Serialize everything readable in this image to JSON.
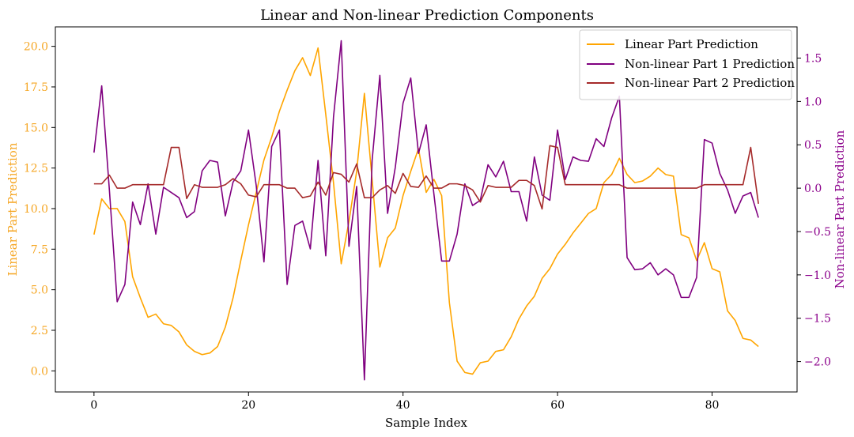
{
  "chart_data": {
    "type": "line",
    "title": "Linear and Non-linear Prediction Components",
    "xlabel": "Sample Index",
    "ylabel_left": "Linear Part Prediction",
    "ylabel_right": "Non-linear Part Prediction",
    "xlim": [
      -5,
      91
    ],
    "ylim_left": [
      -1.3,
      21.2
    ],
    "ylim_right": [
      -2.35,
      1.86
    ],
    "x_ticks": [
      0,
      20,
      40,
      60,
      80
    ],
    "x_tick_labels": [
      "0",
      "20",
      "40",
      "60",
      "80"
    ],
    "y_left_ticks": [
      0.0,
      2.5,
      5.0,
      7.5,
      10.0,
      12.5,
      15.0,
      17.5,
      20.0
    ],
    "y_left_tick_labels": [
      "0.0",
      "2.5",
      "5.0",
      "7.5",
      "10.0",
      "12.5",
      "15.0",
      "17.5",
      "20.0"
    ],
    "y_right_ticks": [
      -2.0,
      -1.5,
      -1.0,
      -0.5,
      0.0,
      0.5,
      1.0,
      1.5
    ],
    "y_right_tick_labels": [
      "−2.0",
      "−1.5",
      "−1.0",
      "−0.5",
      "0.0",
      "0.5",
      "1.0",
      "1.5"
    ],
    "legend_position": "top-right",
    "colors": {
      "left_axis": "#f5a623",
      "right_axis": "#8b008b"
    },
    "series": [
      {
        "name": "Linear Part Prediction",
        "axis": "left",
        "color": "#ffa500",
        "values": [
          8.4,
          10.6,
          10.0,
          10.0,
          9.2,
          5.8,
          4.5,
          3.3,
          3.5,
          2.9,
          2.8,
          2.4,
          1.6,
          1.2,
          1.0,
          1.1,
          1.5,
          2.7,
          4.5,
          6.8,
          9.0,
          11.0,
          13.0,
          14.4,
          16.0,
          17.3,
          18.5,
          19.3,
          18.2,
          19.9,
          15.8,
          11.6,
          6.6,
          9.2,
          12.3,
          17.1,
          11.8,
          6.4,
          8.2,
          8.8,
          10.8,
          12.3,
          13.7,
          11.0,
          11.8,
          10.8,
          4.2,
          0.6,
          -0.1,
          -0.2,
          0.5,
          0.6,
          1.2,
          1.3,
          2.1,
          3.2,
          4.0,
          4.6,
          5.7,
          6.3,
          7.2,
          7.8,
          8.5,
          9.1,
          9.7,
          10.0,
          11.6,
          12.1,
          13.1,
          12.1,
          11.6,
          11.7,
          12.0,
          12.5,
          12.1,
          12.0,
          8.4,
          8.2,
          6.8,
          7.9,
          6.3,
          6.1,
          3.7,
          3.1,
          2.0,
          1.9,
          1.5
        ]
      },
      {
        "name": "Non-linear Part 1 Prediction",
        "axis": "right",
        "color": "#800080",
        "values": [
          0.41,
          1.18,
          -0.03,
          -1.31,
          -1.11,
          -0.16,
          -0.42,
          0.05,
          -0.53,
          0.01,
          -0.05,
          -0.11,
          -0.34,
          -0.27,
          0.2,
          0.32,
          0.3,
          -0.32,
          0.07,
          0.2,
          0.67,
          0.03,
          -0.85,
          0.48,
          0.67,
          -1.11,
          -0.43,
          -0.38,
          -0.7,
          0.32,
          -0.78,
          0.82,
          1.7,
          -0.67,
          0.02,
          -2.21,
          0.32,
          1.3,
          -0.29,
          0.24,
          0.98,
          1.27,
          0.4,
          0.73,
          -0.07,
          -0.84,
          -0.84,
          -0.53,
          0.05,
          -0.2,
          -0.14,
          0.27,
          0.13,
          0.31,
          -0.04,
          -0.04,
          -0.38,
          0.36,
          -0.08,
          -0.14,
          0.67,
          0.1,
          0.36,
          0.32,
          0.31,
          0.57,
          0.48,
          0.81,
          1.06,
          -0.8,
          -0.94,
          -0.93,
          -0.86,
          -1.0,
          -0.93,
          -1.0,
          -1.26,
          -1.26,
          -1.03,
          0.56,
          0.52,
          0.17,
          -0.02,
          -0.29,
          -0.09,
          -0.05,
          -0.34
        ]
      },
      {
        "name": "Non-linear Part 2 Prediction",
        "axis": "right",
        "color": "#a52a2a",
        "values": [
          0.05,
          0.05,
          0.15,
          0.0,
          0.0,
          0.04,
          0.04,
          0.04,
          0.04,
          0.04,
          0.47,
          0.47,
          -0.12,
          0.04,
          0.01,
          0.01,
          0.01,
          0.04,
          0.11,
          0.05,
          -0.08,
          -0.1,
          0.04,
          0.04,
          0.04,
          0.0,
          0.0,
          -0.11,
          -0.09,
          0.07,
          -0.08,
          0.18,
          0.16,
          0.07,
          0.28,
          -0.11,
          -0.11,
          -0.02,
          0.03,
          -0.06,
          0.17,
          0.02,
          0.01,
          0.14,
          0.0,
          0.0,
          0.05,
          0.05,
          0.03,
          -0.02,
          -0.16,
          0.03,
          0.01,
          0.01,
          0.01,
          0.09,
          0.09,
          0.03,
          -0.24,
          0.49,
          0.47,
          0.04,
          0.04,
          0.04,
          0.04,
          0.04,
          0.04,
          0.04,
          0.04,
          0.0,
          0.0,
          0.0,
          0.0,
          0.0,
          0.0,
          0.0,
          0.0,
          0.0,
          0.0,
          0.04,
          0.04,
          0.04,
          0.04,
          0.04,
          0.04,
          0.47,
          -0.18
        ]
      }
    ]
  }
}
